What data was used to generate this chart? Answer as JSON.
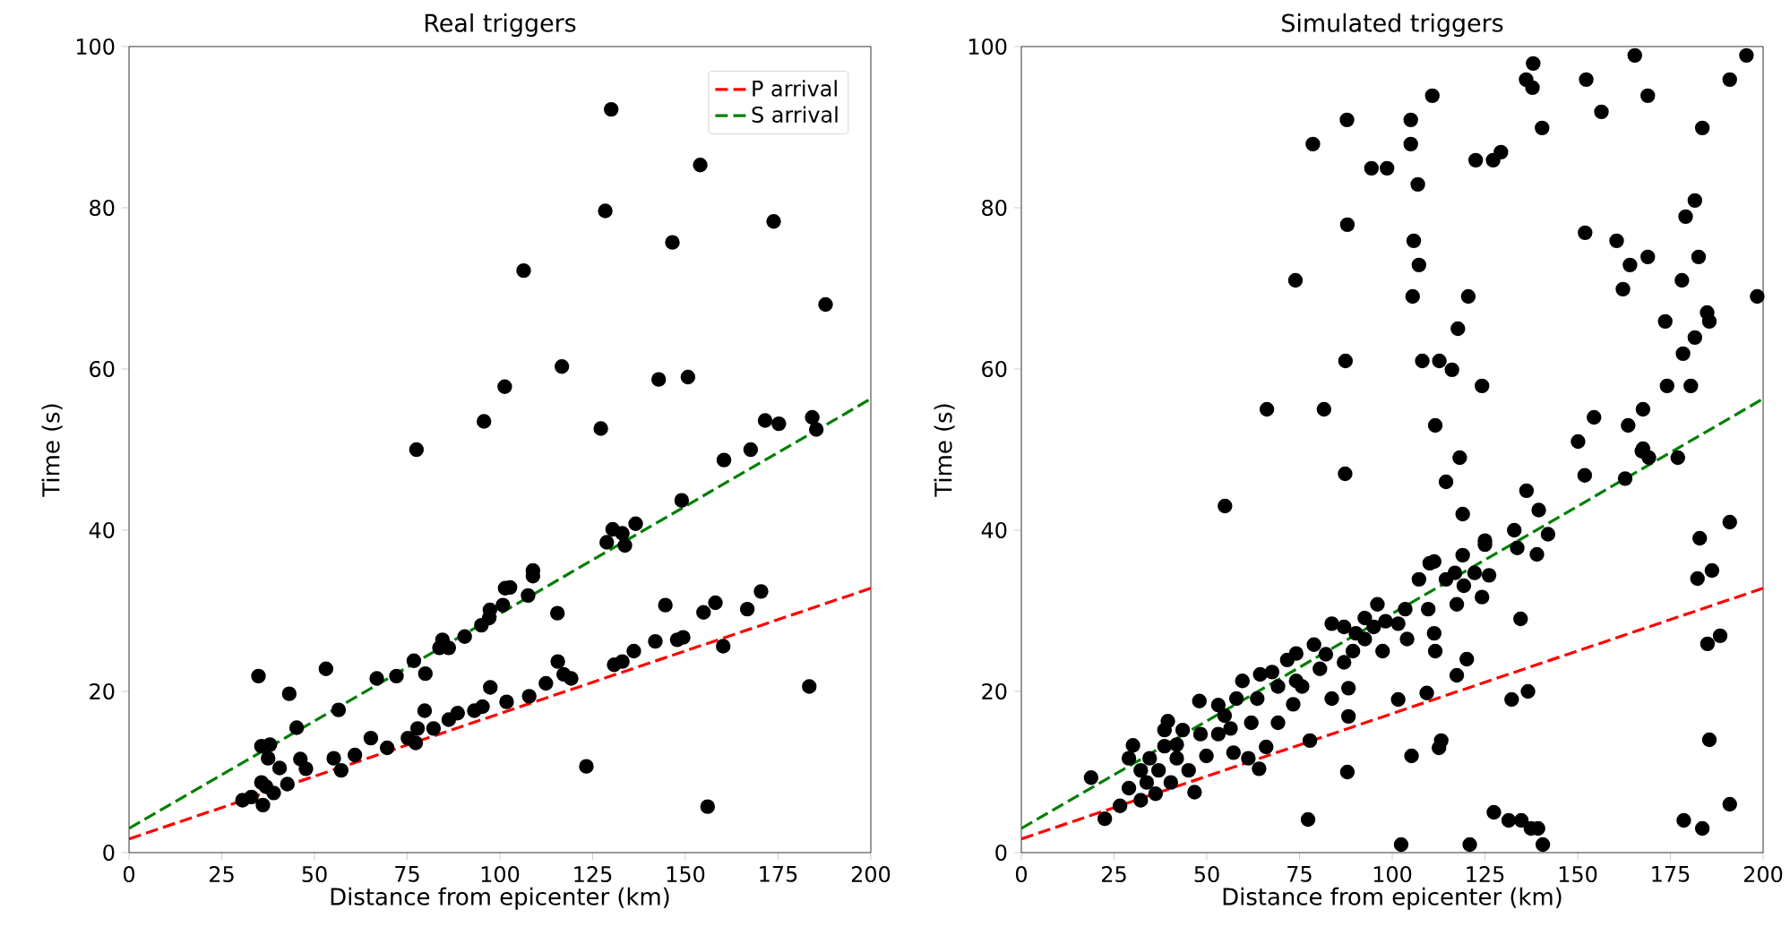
{
  "chart_data": [
    {
      "type": "scatter",
      "title": "Real triggers",
      "xlabel": "Distance from epicenter (km)",
      "ylabel": "Time (s)",
      "xlim": [
        0,
        200
      ],
      "ylim": [
        0,
        100
      ],
      "xticks": [
        0,
        25,
        50,
        75,
        100,
        125,
        150,
        175,
        200
      ],
      "yticks": [
        0,
        20,
        40,
        60,
        80,
        100
      ],
      "legend": "top right",
      "series": [
        {
          "color": "#000000",
          "marker": "circle",
          "x": [
            130,
            154,
            128.4,
            146.5,
            173.8,
            106.4,
            187.8,
            116.7,
            101.3,
            142.8,
            150.7,
            95.7,
            127.2,
            171.5,
            175.2,
            184.2,
            185.3,
            167.6,
            77.5,
            160.4,
            149,
            136.6,
            130.4,
            128.8,
            133.7,
            133,
            108.9,
            108.9,
            101.4,
            102.7,
            107.6,
            100.8,
            97.3,
            97.1,
            95,
            90.5,
            84.5,
            83.7,
            86.2,
            76.8,
            79.9,
            72.1,
            66.8,
            53.1,
            34.9,
            43.2,
            56.5,
            45.2,
            38,
            35.7,
            37.5,
            40.6,
            46.2,
            47.7,
            35.7,
            36.9,
            39,
            42.7,
            30.6,
            33,
            36.1,
            55.2,
            57.2,
            60.9,
            65.2,
            69.6,
            75.2,
            77.3,
            77.8,
            79.7,
            82.1,
            86.2,
            88.6,
            93.1,
            95.3,
            97.4,
            101.8,
            107.9,
            112.4,
            115.6,
            117.2,
            119.2,
            115.5,
            130.8,
            133,
            136.1,
            141.9,
            144.6,
            147.8,
            149.4,
            154.9,
            158.1,
            160.2,
            166.7,
            170.4,
            123.3,
            156,
            183.4
          ],
          "values": [
            92.2,
            85.3,
            79.6,
            75.7,
            78.3,
            72.2,
            68,
            60.3,
            57.8,
            58.7,
            59,
            53.5,
            52.6,
            53.6,
            53.2,
            54,
            52.5,
            50,
            50,
            48.7,
            43.7,
            40.8,
            40.1,
            38.5,
            38.1,
            39.6,
            35,
            34.3,
            32.8,
            32.9,
            31.9,
            30.7,
            30.1,
            29.1,
            28.2,
            26.8,
            26.4,
            25.4,
            25.4,
            23.8,
            22.2,
            21.9,
            21.6,
            22.8,
            21.9,
            19.7,
            17.7,
            15.5,
            13.4,
            13.2,
            11.7,
            10.5,
            11.6,
            10.4,
            8.7,
            8.2,
            7.4,
            8.5,
            6.5,
            6.9,
            5.9,
            11.7,
            10.2,
            12.1,
            14.2,
            13,
            14.2,
            13.6,
            15.4,
            17.6,
            15.4,
            16.5,
            17.3,
            17.6,
            18.1,
            20.5,
            18.7,
            19.4,
            21,
            23.7,
            22.1,
            21.6,
            29.7,
            23.3,
            23.7,
            25,
            26.2,
            30.7,
            26.4,
            26.7,
            29.8,
            31,
            25.6,
            30.2,
            32.4,
            10.7,
            5.7,
            20.6
          ]
        },
        {
          "type": "line",
          "name": "P arrival",
          "color": "#ff0000",
          "line_style": "dashed",
          "marker": "none",
          "x": [
            0,
            200
          ],
          "values": [
            1.7,
            32.8
          ]
        },
        {
          "type": "line",
          "name": "S arrival",
          "color": "#008000",
          "line_style": "dashed",
          "marker": "none",
          "x": [
            0,
            200
          ],
          "values": [
            3.0,
            56.3
          ]
        }
      ]
    },
    {
      "type": "scatter",
      "title": "Simulated triggers",
      "xlabel": "Distance from epicenter (km)",
      "ylabel": "Time (s)",
      "xlim": [
        0,
        200
      ],
      "ylim": [
        0,
        100
      ],
      "xticks": [
        0,
        25,
        50,
        75,
        100,
        125,
        150,
        175,
        200
      ],
      "yticks": [
        0,
        20,
        40,
        60,
        80,
        100
      ],
      "series": [
        {
          "color": "#000000",
          "marker": "circle",
          "x": [
            138,
            165.4,
            195.5,
            136.1,
            137.8,
            152.3,
            191,
            110.8,
            168.9,
            87.8,
            105,
            156.4,
            78.6,
            105,
            140.4,
            183.6,
            94.4,
            98.6,
            122.5,
            127.2,
            129.3,
            106.9,
            181.6,
            179.1,
            87.9,
            152,
            160.5,
            105.8,
            107.2,
            164.1,
            168.9,
            182.6,
            73.9,
            162.2,
            178.1,
            105.5,
            120.5,
            198.4,
            117.7,
            173.6,
            184.9,
            185.5,
            181.6,
            87.4,
            108.1,
            112.7,
            116.1,
            178.4,
            124.2,
            174.1,
            180.5,
            66.2,
            81.6,
            167.6,
            111.6,
            154.4,
            163.6,
            150.1,
            167.6,
            87.3,
            54.9,
            18.8,
            22.5,
            77.3,
            87.9,
            77.8,
            88.2,
            88.2,
            30.1,
            29,
            26.6,
            32.2,
            38.6,
            39.5,
            43.5,
            48,
            46.7,
            49.9,
            54.8,
            57.2,
            61.2,
            64.1,
            66,
            59.6,
            64.4,
            67.6,
            71.7,
            74.1,
            78.9,
            83.7,
            87,
            90.2,
            92.6,
            96,
            97.4,
            83.7,
            73.3,
            75.7,
            69.2,
            62,
            56.4,
            53.1,
            41.9,
            37,
            33.8,
            29,
            36.2,
            40.3,
            45.1,
            48.3,
            53.1,
            58,
            63.6,
            69.2,
            74.1,
            80.5,
            82.1,
            87,
            89.4,
            92.6,
            95,
            98.2,
            32.2,
            34.6,
            41.9,
            38.6,
            118.2,
            114.5,
            151.9,
            162.8,
            167.3,
            169.2,
            177,
            136.2,
            139.5,
            119,
            132.9,
            142,
            125,
            125,
            133.7,
            139,
            119,
            111.3,
            110.1,
            126.1,
            122.2,
            116.9,
            107.2,
            114.5,
            119.3,
            124.2,
            117.4,
            103.5,
            109.7,
            101.6,
            104,
            111.3,
            111.6,
            134.6,
            120.1,
            117.4,
            109.3,
            101.6,
            132.2,
            136.6,
            113.2,
            112.6,
            105.2,
            127.4,
            131.4,
            134.8,
            137.4,
            139.3,
            102.4,
            120.9,
            140.6,
            191,
            182.9,
            186.2,
            182.3,
            188.4,
            185,
            185.5,
            191,
            178.6,
            183.6
          ],
          "values": [
            97.9,
            98.9,
            98.9,
            95.9,
            94.9,
            95.9,
            95.9,
            93.9,
            93.9,
            90.9,
            90.9,
            91.9,
            87.9,
            87.9,
            89.9,
            89.9,
            84.9,
            84.9,
            85.9,
            85.9,
            86.9,
            82.9,
            80.9,
            78.9,
            77.9,
            76.9,
            75.9,
            75.9,
            72.9,
            72.9,
            73.9,
            73.9,
            71,
            69.9,
            71,
            69,
            69,
            69,
            65,
            65.9,
            67,
            65.9,
            63.9,
            61,
            61,
            61,
            59.9,
            61.9,
            57.9,
            57.9,
            57.9,
            55,
            55,
            55,
            53,
            54,
            53,
            51,
            50.1,
            47,
            43,
            9.3,
            4.2,
            4.1,
            10,
            13.9,
            16.9,
            20.4,
            13.3,
            11.7,
            5.8,
            6.5,
            15.2,
            16.3,
            15.2,
            18.8,
            7.5,
            12,
            17,
            12.4,
            11.7,
            10.4,
            13.1,
            21.3,
            22.1,
            22.4,
            23.9,
            24.7,
            25.8,
            28.4,
            28,
            27.2,
            29.1,
            30.8,
            25,
            19.1,
            18.4,
            20.6,
            16.1,
            16.1,
            15.4,
            18.3,
            13.4,
            10.2,
            8.7,
            8,
            7.3,
            8.7,
            10.2,
            14.7,
            14.7,
            19.1,
            19.1,
            20.6,
            21.3,
            22.8,
            24.6,
            23.6,
            25,
            26.5,
            28,
            28.7,
            10.2,
            11.7,
            11.7,
            13.2,
            49,
            46,
            46.8,
            46.4,
            49.8,
            49,
            49,
            44.9,
            42.5,
            42,
            40,
            39.5,
            38.7,
            38.2,
            37.8,
            37,
            36.9,
            36.1,
            35.9,
            34.4,
            34.7,
            34.7,
            33.9,
            33.9,
            33.1,
            31.7,
            30.8,
            30.2,
            30.2,
            28.4,
            26.5,
            27.2,
            25,
            29,
            24,
            22,
            19.8,
            19,
            19,
            20,
            13.9,
            13,
            12,
            5,
            4,
            4,
            3,
            3,
            1,
            1,
            1,
            41,
            39,
            35,
            34,
            26.9,
            25.9,
            14,
            6,
            4,
            3
          ]
        },
        {
          "type": "line",
          "color": "#ff0000",
          "line_style": "dashed",
          "marker": "none",
          "x": [
            0,
            200
          ],
          "values": [
            1.7,
            32.8
          ]
        },
        {
          "type": "line",
          "color": "#008000",
          "line_style": "dashed",
          "marker": "none",
          "x": [
            0,
            200
          ],
          "values": [
            3.0,
            56.3
          ]
        }
      ]
    }
  ]
}
